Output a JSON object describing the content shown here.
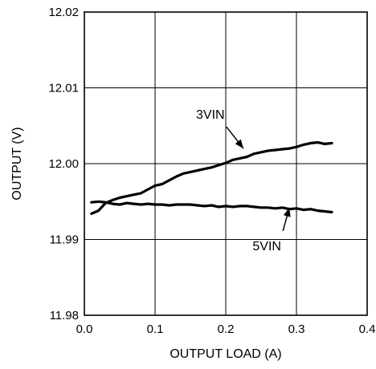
{
  "chart_data": {
    "type": "line",
    "title": "",
    "xlabel": "OUTPUT LOAD (A)",
    "ylabel": "OUTPUT (V)",
    "xlim": [
      0.0,
      0.4
    ],
    "ylim": [
      11.98,
      12.02
    ],
    "xticks": [
      "0.0",
      "0.1",
      "0.2",
      "0.3",
      "0.4"
    ],
    "yticks": [
      "11.98",
      "11.99",
      "12.00",
      "12.01",
      "12.02"
    ],
    "grid": true,
    "series": [
      {
        "name": "3VIN",
        "x": [
          0.01,
          0.02,
          0.03,
          0.04,
          0.05,
          0.06,
          0.07,
          0.08,
          0.09,
          0.1,
          0.11,
          0.12,
          0.13,
          0.14,
          0.15,
          0.16,
          0.17,
          0.18,
          0.19,
          0.2,
          0.21,
          0.22,
          0.23,
          0.24,
          0.25,
          0.26,
          0.27,
          0.28,
          0.29,
          0.3,
          0.31,
          0.32,
          0.33,
          0.34,
          0.35
        ],
        "y": [
          11.9934,
          11.9938,
          11.9948,
          11.9952,
          11.9955,
          11.9957,
          11.9959,
          11.9961,
          11.9966,
          11.9971,
          11.9973,
          11.9978,
          11.9983,
          11.9987,
          11.9989,
          11.9991,
          11.9993,
          11.9995,
          11.9998,
          12.0001,
          12.0005,
          12.0007,
          12.0009,
          12.0013,
          12.0015,
          12.0017,
          12.0018,
          12.0019,
          12.002,
          12.0022,
          12.0025,
          12.0027,
          12.0028,
          12.0026,
          12.0027
        ]
      },
      {
        "name": "5VIN",
        "x": [
          0.01,
          0.02,
          0.03,
          0.04,
          0.05,
          0.06,
          0.07,
          0.08,
          0.09,
          0.1,
          0.11,
          0.12,
          0.13,
          0.14,
          0.15,
          0.16,
          0.17,
          0.18,
          0.19,
          0.2,
          0.21,
          0.22,
          0.23,
          0.24,
          0.25,
          0.26,
          0.27,
          0.28,
          0.29,
          0.3,
          0.31,
          0.32,
          0.33,
          0.34,
          0.35
        ],
        "y": [
          11.9949,
          11.995,
          11.9949,
          11.9947,
          11.9946,
          11.9948,
          11.9947,
          11.9946,
          11.9947,
          11.9946,
          11.9946,
          11.9945,
          11.9946,
          11.9946,
          11.9946,
          11.9945,
          11.9944,
          11.9945,
          11.9943,
          11.9944,
          11.9943,
          11.9944,
          11.9944,
          11.9943,
          11.9942,
          11.9942,
          11.9941,
          11.9942,
          11.994,
          11.9941,
          11.9939,
          11.994,
          11.9938,
          11.9937,
          11.9936
        ]
      }
    ],
    "annotations": [
      {
        "text": "3VIN",
        "target": {
          "x": 0.225,
          "y": 12.002
        },
        "from": {
          "x": 0.185,
          "y": 12.0055
        }
      },
      {
        "text": "5VIN",
        "target": {
          "x": 0.29,
          "y": 11.9942
        },
        "from": {
          "x": 0.265,
          "y": 11.9905
        }
      }
    ]
  }
}
